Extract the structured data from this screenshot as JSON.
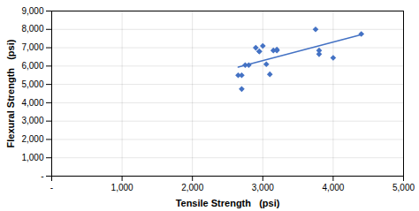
{
  "chart_data": {
    "type": "scatter",
    "xlabel": "Tensile Strength   (psi)",
    "ylabel": "Flexural Strength   (psi)",
    "series": [
      {
        "type": "scatter",
        "marker": "diamond",
        "color": "#4472C4",
        "x": [
          2650,
          2700,
          2700,
          2750,
          2800,
          2900,
          2950,
          2950,
          3000,
          3050,
          3100,
          3150,
          3200,
          3200,
          3750,
          3800,
          3800,
          4000,
          4400
        ],
        "values": [
          5500,
          5500,
          4750,
          6050,
          6050,
          7000,
          6800,
          6800,
          7100,
          6100,
          5550,
          6850,
          6850,
          6900,
          8000,
          6850,
          6650,
          6450,
          7750
        ]
      },
      {
        "type": "line",
        "line_style": "solid",
        "color": "#4472C4",
        "x": [
          2650,
          4400
        ],
        "values": [
          5940.986,
          7711.196
        ]
      }
    ],
    "xlim": [
      0,
      5000
    ],
    "ylim": [
      0,
      9000
    ],
    "xticks": [
      {
        "value": 0,
        "label": "-"
      },
      {
        "value": 1000,
        "label": "1,000"
      },
      {
        "value": 2000,
        "label": "2,000"
      },
      {
        "value": 3000,
        "label": "3,000"
      },
      {
        "value": 4000,
        "label": "4,000"
      },
      {
        "value": 5000,
        "label": "5,000"
      }
    ],
    "yticks": [
      {
        "value": 0,
        "label": "-"
      },
      {
        "value": 1000,
        "label": "1,000"
      },
      {
        "value": 2000,
        "label": "2,000"
      },
      {
        "value": 3000,
        "label": "3,000"
      },
      {
        "value": 4000,
        "label": "4,000"
      },
      {
        "value": 5000,
        "label": "5,000"
      },
      {
        "value": 6000,
        "label": "6,000"
      },
      {
        "value": 7000,
        "label": "7,000"
      },
      {
        "value": 8000,
        "label": "8,000"
      },
      {
        "value": 9000,
        "label": "9,000"
      }
    ],
    "grid": true
  }
}
